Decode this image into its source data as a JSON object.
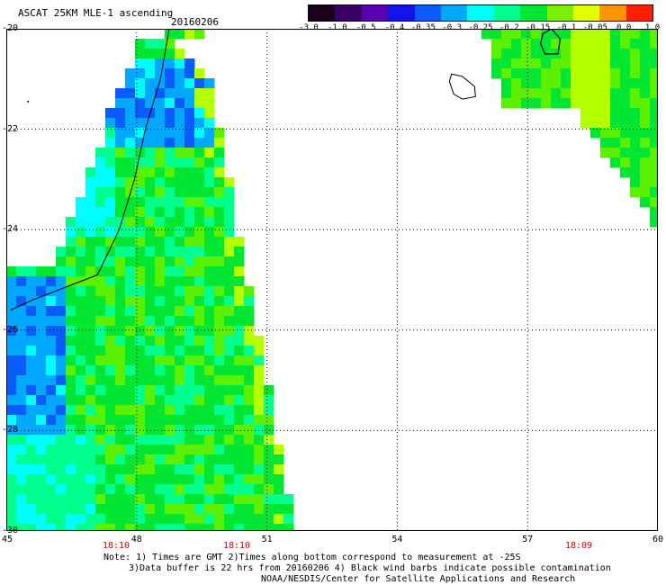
{
  "header": {
    "title": "ASCAT 25KM MLE-1 ascending",
    "date": "20160206"
  },
  "colorbar": {
    "labels": [
      "-3.0",
      "-1.0",
      "-0.5",
      "-0.4",
      "-0.35",
      "-0.3",
      "-0.25",
      "-0.2",
      "-0.15",
      "-0.1",
      "-0.05",
      "0.0",
      "1.0"
    ],
    "colors": [
      "#1a001a",
      "#3a0066",
      "#5a00b0",
      "#1414e6",
      "#0a5cff",
      "#00a8ff",
      "#00ffff",
      "#00ff8c",
      "#00e632",
      "#78f000",
      "#e6ff00",
      "#ff9600",
      "#ff1e00"
    ]
  },
  "map": {
    "lat_ticks": [
      "-20",
      "-22",
      "-24",
      "-26",
      "-28",
      "-30"
    ],
    "lon_ticks": [
      "45",
      "48",
      "51",
      "54",
      "57",
      "60"
    ],
    "pass_times": [
      "18:10",
      "18:10",
      "18:09"
    ],
    "lon_range": [
      45,
      60
    ],
    "lat_range": [
      -30,
      -20
    ]
  },
  "notes": [
    "Note: 1) Times are GMT 2)Times along bottom correspond to measurement at -25S",
    "3)Data buffer is 22 hrs from 20160206 4) Black wind barbs indicate possible contamination",
    "NOAA/NESDIS/Center for Satellite Applications and Research"
  ]
}
